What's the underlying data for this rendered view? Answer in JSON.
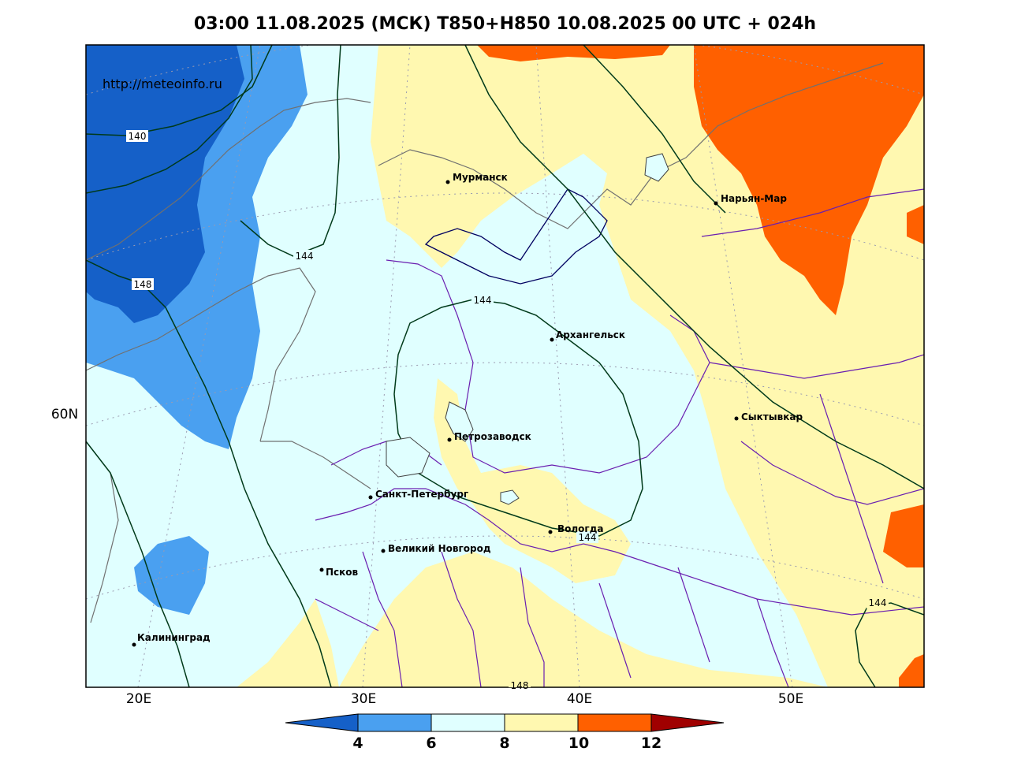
{
  "title": "03:00 11.08.2025 (МСК) T850+H850 10.08.2025 00 UTC + 024h",
  "source_url": "http://meteoinfo.ru",
  "axes": {
    "longitude_labels": [
      "20E",
      "30E",
      "40E",
      "50E"
    ],
    "latitude_labels": [
      "60N"
    ]
  },
  "cities": [
    {
      "name": "Мурманск"
    },
    {
      "name": "Нарьян-Мар"
    },
    {
      "name": "Архангельск"
    },
    {
      "name": "Сыктывкар"
    },
    {
      "name": "Петрозаводск"
    },
    {
      "name": "Санкт-Петербург"
    },
    {
      "name": "Вологда"
    },
    {
      "name": "Великий Новгород"
    },
    {
      "name": "Псков"
    },
    {
      "name": "Калининград"
    }
  ],
  "contour_labels": [
    "140",
    "144",
    "148",
    "144",
    "144",
    "144",
    "148"
  ],
  "colorbar": {
    "ticks": [
      "4",
      "6",
      "8",
      "10",
      "12"
    ],
    "colors": {
      "below_4": "#1560c8",
      "4_6": "#4aa0f0",
      "6_8": "#e0ffff",
      "8_10": "#fff8b0",
      "10_12": "#ff6000",
      "above_12": "#a00000"
    }
  }
}
